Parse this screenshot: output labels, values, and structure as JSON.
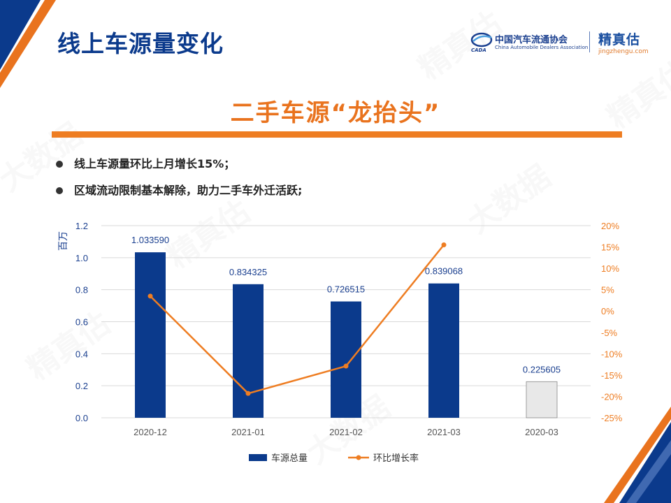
{
  "header": {
    "title": "线上车源量变化",
    "assoc_logo_cn": "中国汽车流通协会",
    "assoc_logo_en": "China Automobile Dealers Association",
    "assoc_logo_abbr": "CADA",
    "brand_logo_cn": "精真估",
    "brand_logo_en": "jingzhengu.com"
  },
  "subtitle": "二手车源“龙抬头”",
  "bullets": [
    "线上车源量环比上月增长15%；",
    "区域流动限制基本解除，助力二手车外迁活跃;"
  ],
  "watermark_text": "精真估",
  "watermark_text2": "大数据",
  "colors": {
    "bar": "#0b3a8c",
    "bar_ref": "#e8e8e8",
    "line": "#ee7d22",
    "title": "#0b3a8c",
    "accent": "#ee7d22"
  },
  "chart_data": {
    "type": "bar",
    "categories": [
      "2020-12",
      "2021-01",
      "2021-02",
      "2021-03",
      "2020-03"
    ],
    "series": [
      {
        "name": "车源总量",
        "type": "bar",
        "axis": "left",
        "values": [
          1.03359,
          0.834325,
          0.726515,
          0.839068,
          0.225605
        ],
        "labels": [
          "1.033590",
          "0.834325",
          "0.726515",
          "0.839068",
          "0.225605"
        ]
      },
      {
        "name": "环比增长率",
        "type": "line",
        "axis": "right",
        "values": [
          3.5,
          -19.3,
          -12.9,
          15.5,
          null
        ]
      }
    ],
    "ylabel": "百万",
    "ylim": [
      0,
      1.2
    ],
    "yticks": [
      "0.0",
      "0.2",
      "0.4",
      "0.6",
      "0.8",
      "1.0",
      "1.2"
    ],
    "y2lim": [
      -25,
      20
    ],
    "y2ticks": [
      "-25%",
      "-20%",
      "-15%",
      "-10%",
      "-5%",
      "0%",
      "5%",
      "10%",
      "15%",
      "20%"
    ],
    "grid": true,
    "legend": "bottom"
  }
}
